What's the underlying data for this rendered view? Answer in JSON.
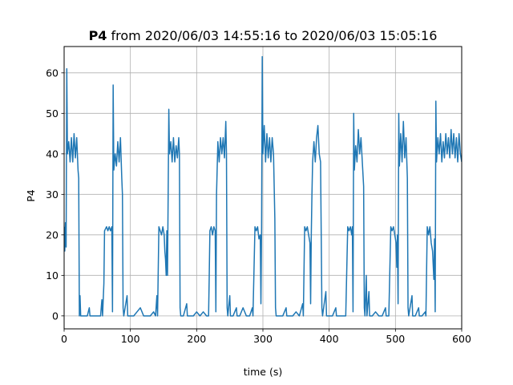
{
  "chart_data": {
    "type": "line",
    "title": {
      "bold": "P4",
      "rest": " from 2020/06/03 14:55:16 to 2020/06/03 15:05:16"
    },
    "xlabel": "time (s)",
    "ylabel": "P4",
    "xlim": [
      0,
      600
    ],
    "ylim": [
      -3.2,
      66.5
    ],
    "xticks": [
      0,
      100,
      200,
      300,
      400,
      500,
      600
    ],
    "yticks": [
      0,
      10,
      20,
      30,
      40,
      50,
      60
    ],
    "grid": true,
    "line_color": "#1f77b4",
    "series": [
      {
        "values": [
          [
            0,
            22
          ],
          [
            1,
            16
          ],
          [
            2,
            23
          ],
          [
            3,
            17
          ],
          [
            4,
            61
          ],
          [
            5,
            40
          ],
          [
            7,
            43
          ],
          [
            9,
            38
          ],
          [
            11,
            44
          ],
          [
            13,
            38
          ],
          [
            15,
            45
          ],
          [
            17,
            39
          ],
          [
            19,
            44
          ],
          [
            21,
            36
          ],
          [
            22,
            34
          ],
          [
            23,
            0
          ],
          [
            24,
            5
          ],
          [
            25,
            0
          ],
          [
            30,
            0
          ],
          [
            35,
            0
          ],
          [
            38,
            2
          ],
          [
            39,
            0
          ],
          [
            45,
            0
          ],
          [
            50,
            0
          ],
          [
            55,
            0
          ],
          [
            57,
            4
          ],
          [
            58,
            0
          ],
          [
            60,
            8
          ],
          [
            61,
            21
          ],
          [
            64,
            22
          ],
          [
            66,
            21
          ],
          [
            68,
            22
          ],
          [
            70,
            21
          ],
          [
            72,
            22
          ],
          [
            73,
            1
          ],
          [
            74,
            57
          ],
          [
            75,
            36
          ],
          [
            77,
            40
          ],
          [
            79,
            37
          ],
          [
            81,
            43
          ],
          [
            83,
            38
          ],
          [
            85,
            44
          ],
          [
            87,
            34
          ],
          [
            88,
            30
          ],
          [
            89,
            2
          ],
          [
            90,
            0
          ],
          [
            95,
            5
          ],
          [
            96,
            0
          ],
          [
            100,
            0
          ],
          [
            105,
            0
          ],
          [
            110,
            1
          ],
          [
            115,
            2
          ],
          [
            120,
            0
          ],
          [
            125,
            0
          ],
          [
            130,
            0
          ],
          [
            135,
            1
          ],
          [
            138,
            0
          ],
          [
            140,
            5
          ],
          [
            141,
            0
          ],
          [
            143,
            22
          ],
          [
            145,
            21
          ],
          [
            147,
            20
          ],
          [
            149,
            22
          ],
          [
            151,
            20
          ],
          [
            152,
            16
          ],
          [
            153,
            14
          ],
          [
            154,
            10
          ],
          [
            155,
            21
          ],
          [
            156,
            10
          ],
          [
            157,
            30
          ],
          [
            158,
            51
          ],
          [
            159,
            40
          ],
          [
            161,
            43
          ],
          [
            163,
            38
          ],
          [
            165,
            44
          ],
          [
            167,
            38
          ],
          [
            169,
            42
          ],
          [
            171,
            39
          ],
          [
            173,
            44
          ],
          [
            174,
            40
          ],
          [
            175,
            2
          ],
          [
            176,
            0
          ],
          [
            180,
            0
          ],
          [
            185,
            3
          ],
          [
            186,
            0
          ],
          [
            190,
            0
          ],
          [
            195,
            0
          ],
          [
            200,
            1
          ],
          [
            205,
            0
          ],
          [
            210,
            1
          ],
          [
            215,
            0
          ],
          [
            218,
            0
          ],
          [
            219,
            10
          ],
          [
            220,
            21
          ],
          [
            222,
            22
          ],
          [
            224,
            20
          ],
          [
            226,
            22
          ],
          [
            228,
            21
          ],
          [
            229,
            1
          ],
          [
            230,
            30
          ],
          [
            232,
            43
          ],
          [
            234,
            38
          ],
          [
            236,
            44
          ],
          [
            238,
            40
          ],
          [
            240,
            44
          ],
          [
            242,
            39
          ],
          [
            244,
            48
          ],
          [
            245,
            40
          ],
          [
            246,
            2
          ],
          [
            247,
            0
          ],
          [
            250,
            5
          ],
          [
            251,
            0
          ],
          [
            255,
            0
          ],
          [
            260,
            2
          ],
          [
            261,
            0
          ],
          [
            265,
            0
          ],
          [
            270,
            2
          ],
          [
            275,
            0
          ],
          [
            280,
            0
          ],
          [
            284,
            2
          ],
          [
            285,
            0
          ],
          [
            288,
            22
          ],
          [
            290,
            21
          ],
          [
            292,
            22
          ],
          [
            294,
            19
          ],
          [
            296,
            20
          ],
          [
            297,
            3
          ],
          [
            298,
            22
          ],
          [
            299,
            64
          ],
          [
            300,
            40
          ],
          [
            302,
            47
          ],
          [
            304,
            38
          ],
          [
            306,
            45
          ],
          [
            308,
            39
          ],
          [
            310,
            44
          ],
          [
            312,
            38
          ],
          [
            314,
            44
          ],
          [
            316,
            40
          ],
          [
            318,
            24
          ],
          [
            319,
            2
          ],
          [
            320,
            0
          ],
          [
            325,
            0
          ],
          [
            330,
            0
          ],
          [
            335,
            2
          ],
          [
            336,
            0
          ],
          [
            340,
            0
          ],
          [
            345,
            0
          ],
          [
            350,
            1
          ],
          [
            355,
            0
          ],
          [
            360,
            3
          ],
          [
            361,
            0
          ],
          [
            363,
            22
          ],
          [
            365,
            21
          ],
          [
            367,
            22
          ],
          [
            369,
            20
          ],
          [
            371,
            18
          ],
          [
            372,
            3
          ],
          [
            373,
            20
          ],
          [
            374,
            30
          ],
          [
            375,
            38
          ],
          [
            377,
            43
          ],
          [
            379,
            38
          ],
          [
            381,
            44
          ],
          [
            383,
            47
          ],
          [
            385,
            40
          ],
          [
            387,
            38
          ],
          [
            388,
            20
          ],
          [
            389,
            2
          ],
          [
            390,
            0
          ],
          [
            395,
            6
          ],
          [
            396,
            0
          ],
          [
            400,
            0
          ],
          [
            405,
            0
          ],
          [
            410,
            2
          ],
          [
            411,
            0
          ],
          [
            415,
            0
          ],
          [
            420,
            0
          ],
          [
            425,
            0
          ],
          [
            428,
            22
          ],
          [
            430,
            21
          ],
          [
            432,
            22
          ],
          [
            434,
            20
          ],
          [
            435,
            22
          ],
          [
            436,
            1
          ],
          [
            437,
            50
          ],
          [
            438,
            36
          ],
          [
            440,
            42
          ],
          [
            442,
            38
          ],
          [
            444,
            46
          ],
          [
            446,
            40
          ],
          [
            448,
            44
          ],
          [
            450,
            38
          ],
          [
            452,
            32
          ],
          [
            453,
            2
          ],
          [
            454,
            0
          ],
          [
            456,
            10
          ],
          [
            457,
            0
          ],
          [
            460,
            6
          ],
          [
            461,
            0
          ],
          [
            465,
            0
          ],
          [
            470,
            1
          ],
          [
            475,
            0
          ],
          [
            480,
            0
          ],
          [
            485,
            2
          ],
          [
            486,
            0
          ],
          [
            490,
            0
          ],
          [
            493,
            22
          ],
          [
            495,
            21
          ],
          [
            497,
            22
          ],
          [
            499,
            20
          ],
          [
            501,
            18
          ],
          [
            502,
            12
          ],
          [
            503,
            20
          ],
          [
            504,
            3
          ],
          [
            505,
            50
          ],
          [
            506,
            37
          ],
          [
            508,
            45
          ],
          [
            510,
            38
          ],
          [
            512,
            48
          ],
          [
            514,
            39
          ],
          [
            516,
            44
          ],
          [
            518,
            34
          ],
          [
            519,
            2
          ],
          [
            520,
            0
          ],
          [
            525,
            5
          ],
          [
            526,
            0
          ],
          [
            530,
            0
          ],
          [
            535,
            2
          ],
          [
            536,
            0
          ],
          [
            540,
            0
          ],
          [
            545,
            1
          ],
          [
            546,
            0
          ],
          [
            548,
            22
          ],
          [
            550,
            20
          ],
          [
            552,
            22
          ],
          [
            554,
            18
          ],
          [
            556,
            16
          ],
          [
            558,
            9
          ],
          [
            559,
            19
          ],
          [
            560,
            1
          ],
          [
            561,
            53
          ],
          [
            562,
            38
          ],
          [
            564,
            44
          ],
          [
            566,
            40
          ],
          [
            568,
            45
          ],
          [
            570,
            38
          ],
          [
            572,
            43
          ],
          [
            574,
            39
          ],
          [
            576,
            45
          ],
          [
            578,
            40
          ],
          [
            580,
            44
          ],
          [
            582,
            39
          ],
          [
            584,
            46
          ],
          [
            586,
            40
          ],
          [
            588,
            45
          ],
          [
            590,
            39
          ],
          [
            592,
            44
          ],
          [
            594,
            38
          ],
          [
            596,
            45
          ],
          [
            598,
            40
          ],
          [
            600,
            38
          ]
        ]
      }
    ]
  }
}
